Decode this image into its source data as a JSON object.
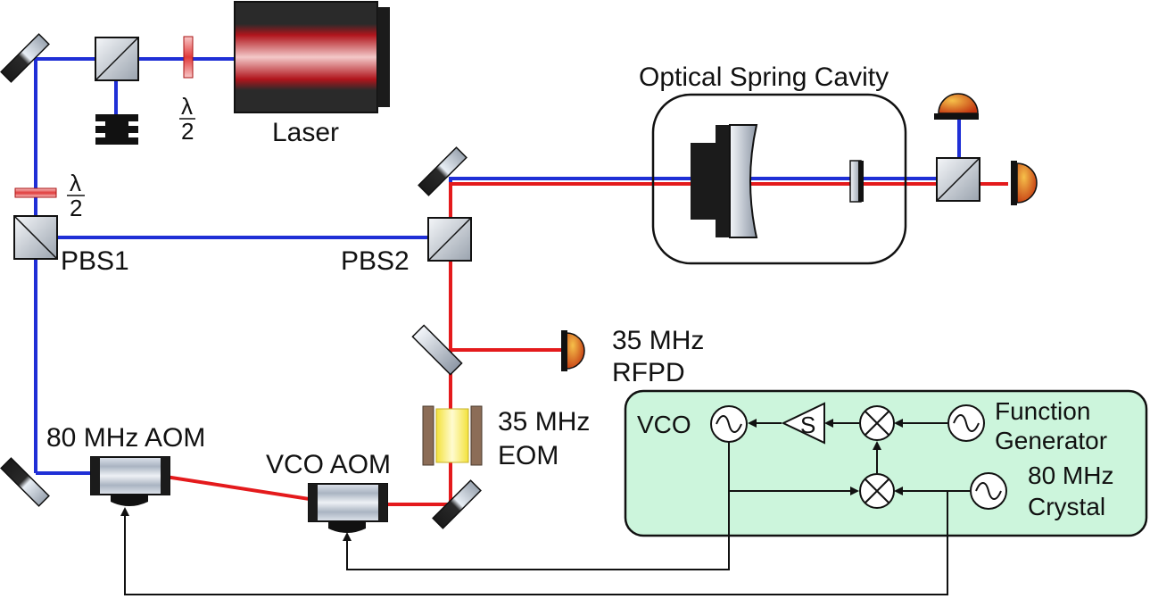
{
  "labels": {
    "laser": "Laser",
    "half_wave_1": "λ",
    "half_wave_1_denom": "2",
    "half_wave_2": "λ",
    "half_wave_2_denom": "2",
    "pbs1": "PBS1",
    "pbs2": "PBS2",
    "cavity": "Optical Spring Cavity",
    "rfpd_line1": "35 MHz",
    "rfpd_line2": "RFPD",
    "eom_line1": "35 MHz",
    "eom_line2": "EOM",
    "aom80": "80 MHz AOM",
    "vco_aom": "VCO AOM"
  },
  "electronics": {
    "vco": "VCO",
    "servo": "S",
    "func_gen_line1": "Function",
    "func_gen_line2": "Generator",
    "crystal_line1": "80 MHz",
    "crystal_line2": "Crystal"
  },
  "colors": {
    "blue_beam": "#1f2fd6",
    "red_beam": "#e41a1c",
    "electronics_box": "#ccf5dc",
    "eom_crystal": "#f7ee6a",
    "eom_plate": "#8c6d57",
    "detector": "#e07a1f"
  }
}
